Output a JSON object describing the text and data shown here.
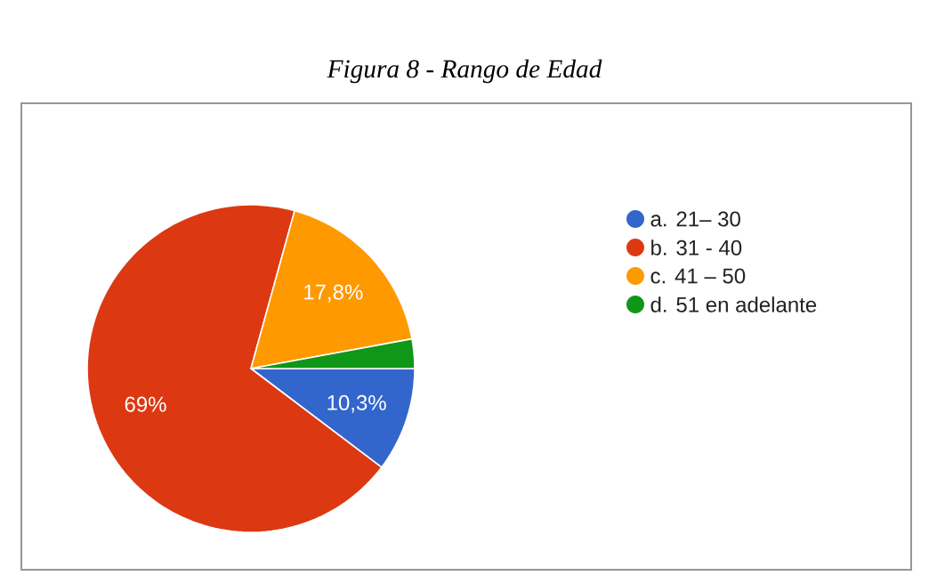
{
  "chart_data": {
    "type": "pie",
    "title": "*Figura 8 - Rango de Edad*",
    "categories": [
      "a. 21– 30",
      "b. 31 - 40",
      "c. 41 – 50",
      "d. 51 en adelante"
    ],
    "values": [
      10.3,
      69,
      17.8,
      2.9
    ],
    "value_labels": [
      "10,3%",
      "69%",
      "17,8%",
      null
    ],
    "colors": [
      "#3366cc",
      "#dc3912",
      "#ff9900",
      "#109618"
    ],
    "legend": "right"
  }
}
